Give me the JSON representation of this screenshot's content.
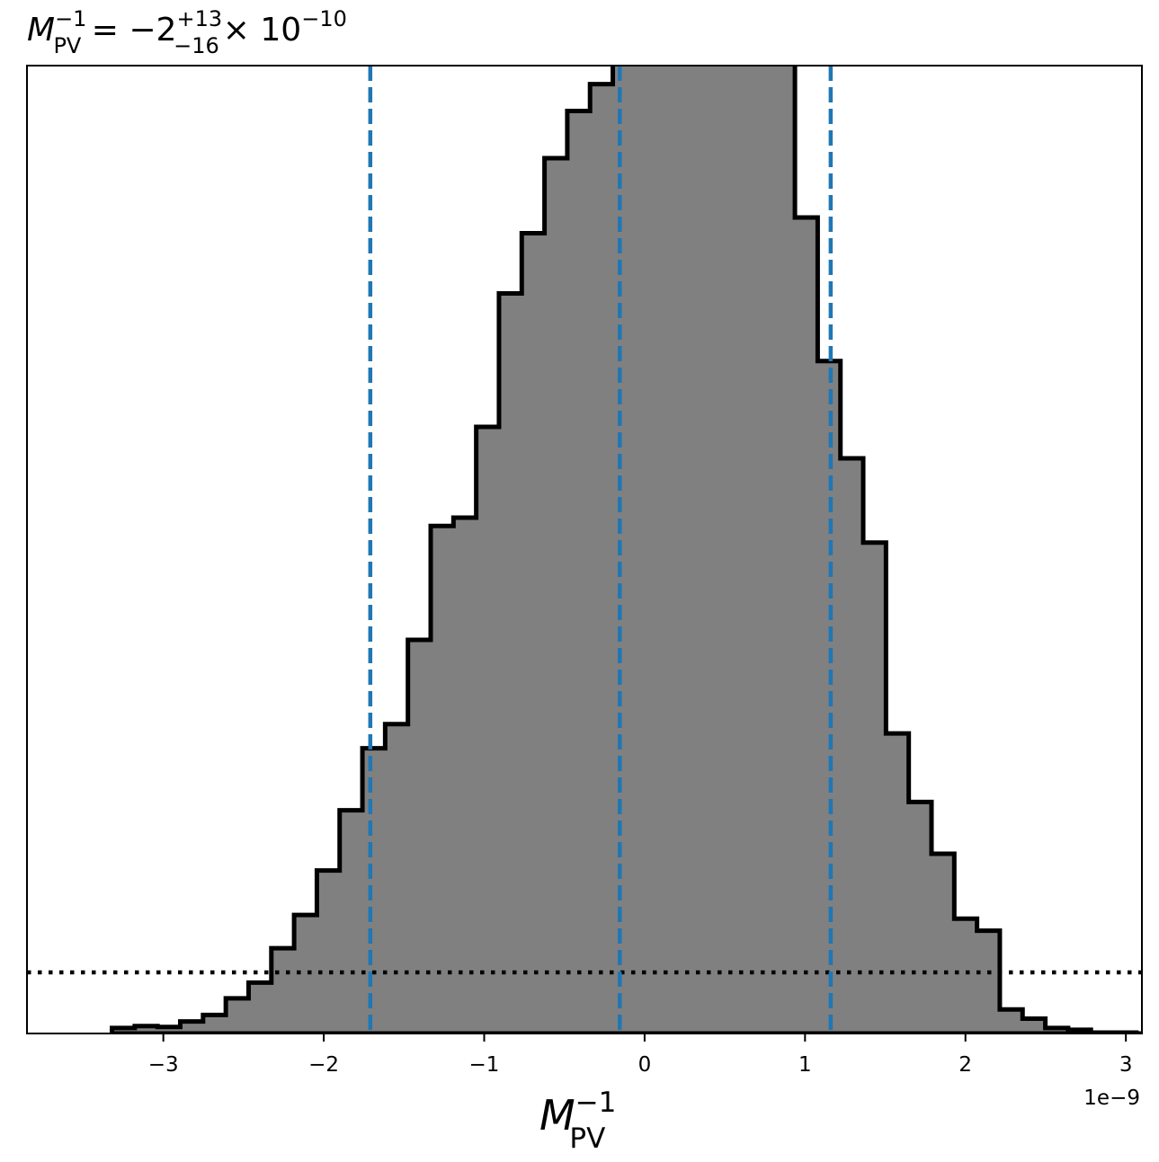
{
  "chart_data": {
    "type": "histogram",
    "title": {
      "sym": "M",
      "sup": "−1",
      "sub": "PV",
      "eq": " = −2",
      "upper": "+13",
      "lower": "−16",
      "times": "× 10",
      "exp": "−10"
    },
    "xlabel": {
      "sym": "M",
      "sup": "−1",
      "sub": "PV"
    },
    "ylabel": "",
    "offset_text": "1e−9",
    "xlim": [
      -3.85,
      3.1
    ],
    "ylim": [
      0,
      1.045
    ],
    "xticks": [
      -3,
      -2,
      -1,
      0,
      1,
      2,
      3
    ],
    "xtick_labels": [
      "−3",
      "−2",
      "−1",
      "0",
      "1",
      "2",
      "3"
    ],
    "units_scale": "1e-9",
    "bins": {
      "start": -3.32,
      "width": 0.1419,
      "heights": [
        0.006,
        0.008,
        0.007,
        0.013,
        0.02,
        0.038,
        0.055,
        0.092,
        0.128,
        0.176,
        0.241,
        0.308,
        0.334,
        0.425,
        0.548,
        0.557,
        0.655,
        0.799,
        0.864,
        0.945,
        0.996,
        1.025,
        1.086,
        1.104,
        1.168,
        1.136,
        1.232,
        1.114,
        1.053,
        1.05,
        0.881,
        0.726,
        0.621,
        0.53,
        0.324,
        0.25,
        0.194,
        0.124,
        0.111,
        0.026,
        0.016,
        0.006,
        0.004,
        0.001,
        0.001,
        0.0,
        0.0
      ]
    },
    "median": -0.155,
    "lower_bound": -1.71,
    "upper_bound": 1.16,
    "reference_level": 0.066,
    "colors": {
      "fill": "#808080",
      "step": "#000000",
      "quantile": "#1f77b4",
      "reference": "#000000"
    }
  }
}
